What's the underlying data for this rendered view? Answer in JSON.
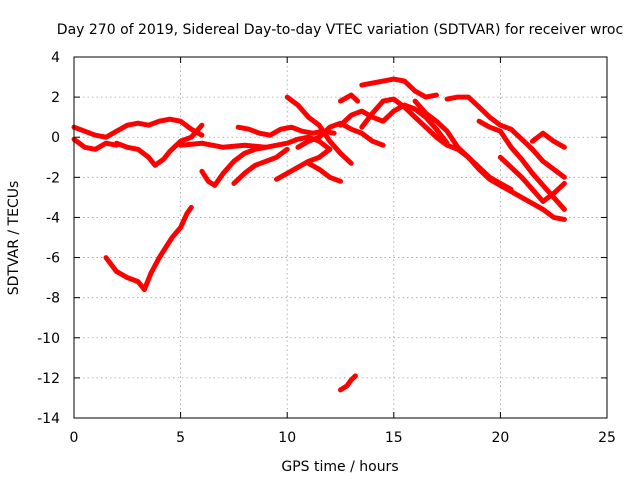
{
  "chart_data": {
    "type": "scatter",
    "title": "Day 270 of 2019, Sidereal Day-to-day VTEC variation (SDTVAR) for receiver wroc",
    "xlabel": "GPS time / hours",
    "ylabel": "SDTVAR / TECUs",
    "xlim": [
      0,
      25
    ],
    "ylim": [
      -14,
      4
    ],
    "x_ticks": [
      0,
      5,
      10,
      15,
      20,
      25
    ],
    "y_ticks": [
      4,
      2,
      0,
      -2,
      -4,
      -6,
      -8,
      -10,
      -12,
      -14
    ],
    "x_tick_labels": [
      "0",
      "5",
      "10",
      "15",
      "20",
      "25"
    ],
    "y_tick_labels": [
      "4",
      "2",
      "0",
      "-2",
      "-4",
      "-6",
      "-8",
      "-10",
      "-12",
      "-14"
    ],
    "grid": true,
    "marker": "+",
    "color": "#ff0000",
    "series": [
      {
        "name": "trace-1",
        "x": [
          0.0,
          0.5,
          1.0,
          1.5,
          2.0,
          2.5,
          3.0,
          3.5,
          4.0,
          4.5,
          5.0,
          5.5,
          6.0
        ],
        "y": [
          0.5,
          0.3,
          0.1,
          0.0,
          0.3,
          0.6,
          0.7,
          0.6,
          0.8,
          0.9,
          0.8,
          0.4,
          0.1
        ]
      },
      {
        "name": "trace-2",
        "x": [
          0.0,
          0.5,
          1.0,
          1.5,
          2.0
        ],
        "y": [
          -0.1,
          -0.5,
          -0.6,
          -0.3,
          -0.4
        ]
      },
      {
        "name": "trace-3",
        "x": [
          2.0,
          2.5,
          3.0,
          3.5,
          3.8,
          4.2,
          4.5,
          5.0,
          5.5,
          6.0
        ],
        "y": [
          -0.3,
          -0.5,
          -0.6,
          -1.0,
          -1.4,
          -1.1,
          -0.7,
          -0.2,
          0.0,
          0.6
        ]
      },
      {
        "name": "trace-4",
        "x": [
          1.5,
          2.0,
          2.5,
          3.0,
          3.3,
          3.6,
          4.0,
          4.3,
          4.6,
          5.0,
          5.3,
          5.5
        ],
        "y": [
          -6.0,
          -6.7,
          -7.0,
          -7.2,
          -7.6,
          -6.8,
          -6.0,
          -5.5,
          -5.0,
          -4.5,
          -3.8,
          -3.5
        ]
      },
      {
        "name": "trace-5",
        "x": [
          5.0,
          6.0,
          7.0,
          8.0,
          9.0,
          10.0,
          10.5,
          11.0,
          11.5,
          12.0
        ],
        "y": [
          -0.4,
          -0.3,
          -0.5,
          -0.4,
          -0.5,
          -0.3,
          -0.1,
          0.0,
          -0.2,
          -0.6
        ]
      },
      {
        "name": "trace-6",
        "x": [
          6.0,
          6.3,
          6.6,
          7.0,
          7.5,
          8.0,
          8.5,
          9.0
        ],
        "y": [
          -1.7,
          -2.2,
          -2.4,
          -1.8,
          -1.2,
          -0.8,
          -0.6,
          -0.5
        ]
      },
      {
        "name": "trace-7",
        "x": [
          7.5,
          8.0,
          8.5,
          9.0,
          9.5,
          10.0
        ],
        "y": [
          -2.3,
          -1.8,
          -1.4,
          -1.2,
          -1.0,
          -0.6
        ]
      },
      {
        "name": "trace-8",
        "x": [
          7.7,
          8.2,
          8.7,
          9.2,
          9.7,
          10.2,
          10.7,
          11.2,
          11.7,
          12.2
        ],
        "y": [
          0.5,
          0.4,
          0.2,
          0.1,
          0.4,
          0.5,
          0.3,
          0.2,
          0.3,
          0.2
        ]
      },
      {
        "name": "trace-9",
        "x": [
          9.5,
          10.0,
          10.5,
          11.0,
          11.5,
          12.0
        ],
        "y": [
          -2.1,
          -1.8,
          -1.5,
          -1.2,
          -1.0,
          -0.6
        ]
      },
      {
        "name": "trace-10",
        "x": [
          10.0,
          10.5,
          11.0,
          11.5,
          12.0,
          12.5,
          13.0
        ],
        "y": [
          2.0,
          1.6,
          1.0,
          0.6,
          -0.2,
          -0.8,
          -1.3
        ]
      },
      {
        "name": "trace-11",
        "x": [
          10.5,
          11.0,
          11.5,
          12.0,
          12.5,
          13.0,
          13.5,
          14.0,
          14.5
        ],
        "y": [
          -0.5,
          -0.2,
          0.0,
          0.5,
          0.7,
          0.4,
          0.2,
          -0.2,
          -0.4
        ]
      },
      {
        "name": "trace-12",
        "x": [
          11.0,
          11.5,
          12.0,
          12.5
        ],
        "y": [
          -1.3,
          -1.6,
          -2.0,
          -2.2
        ]
      },
      {
        "name": "trace-13",
        "x": [
          12.5,
          12.8,
          13.0,
          13.2
        ],
        "y": [
          -12.6,
          -12.4,
          -12.1,
          -11.9
        ]
      },
      {
        "name": "trace-14",
        "x": [
          12.5,
          13.0,
          13.5,
          14.0,
          14.5,
          15.0,
          15.5,
          16.0,
          16.5,
          17.0,
          17.5
        ],
        "y": [
          0.6,
          1.1,
          1.3,
          1.0,
          0.8,
          1.3,
          1.6,
          1.4,
          1.0,
          0.4,
          -0.3
        ]
      },
      {
        "name": "trace-15",
        "x": [
          12.5,
          13.0,
          13.3
        ],
        "y": [
          1.8,
          2.1,
          1.8
        ]
      },
      {
        "name": "trace-16",
        "x": [
          13.5,
          14.0,
          14.5,
          15.0,
          15.5,
          16.0,
          16.5,
          17.0,
          17.5,
          18.0,
          18.5,
          19.0,
          19.5,
          20.0,
          20.5
        ],
        "y": [
          0.5,
          1.2,
          1.8,
          1.9,
          1.5,
          1.0,
          0.5,
          0.0,
          -0.4,
          -0.6,
          -1.0,
          -1.5,
          -2.0,
          -2.3,
          -2.6
        ]
      },
      {
        "name": "trace-17",
        "x": [
          13.5,
          14.0,
          14.5,
          15.0,
          15.5,
          16.0,
          16.5,
          17.0
        ],
        "y": [
          2.6,
          2.7,
          2.8,
          2.9,
          2.8,
          2.3,
          2.0,
          2.1
        ]
      },
      {
        "name": "trace-18",
        "x": [
          16.0,
          16.5,
          17.0,
          17.5,
          18.0,
          18.5,
          19.0,
          19.5,
          20.0,
          20.5,
          21.0,
          21.5,
          22.0,
          22.5,
          23.0
        ],
        "y": [
          1.8,
          1.2,
          0.8,
          0.3,
          -0.5,
          -1.0,
          -1.6,
          -2.1,
          -2.4,
          -2.7,
          -3.0,
          -3.3,
          -3.6,
          -4.0,
          -4.1
        ]
      },
      {
        "name": "trace-19",
        "x": [
          17.5,
          18.0,
          18.5,
          19.0,
          19.5,
          20.0,
          20.5,
          21.0,
          21.5,
          22.0,
          22.5,
          23.0
        ],
        "y": [
          1.9,
          2.0,
          2.0,
          1.5,
          1.0,
          0.6,
          0.4,
          -0.1,
          -0.6,
          -1.2,
          -1.6,
          -2.0
        ]
      },
      {
        "name": "trace-20",
        "x": [
          19.0,
          19.5,
          20.0,
          20.5,
          21.0,
          21.5,
          22.0,
          22.5,
          23.0
        ],
        "y": [
          0.8,
          0.5,
          0.3,
          -0.5,
          -1.1,
          -1.8,
          -2.4,
          -3.0,
          -3.6
        ]
      },
      {
        "name": "trace-21",
        "x": [
          20.0,
          20.5,
          21.0,
          21.5,
          22.0,
          22.5,
          23.0
        ],
        "y": [
          -1.0,
          -1.5,
          -2.0,
          -2.6,
          -3.2,
          -2.8,
          -2.3
        ]
      },
      {
        "name": "trace-22",
        "x": [
          21.5,
          22.0,
          22.5,
          23.0
        ],
        "y": [
          -0.2,
          0.2,
          -0.2,
          -0.5
        ]
      }
    ]
  }
}
